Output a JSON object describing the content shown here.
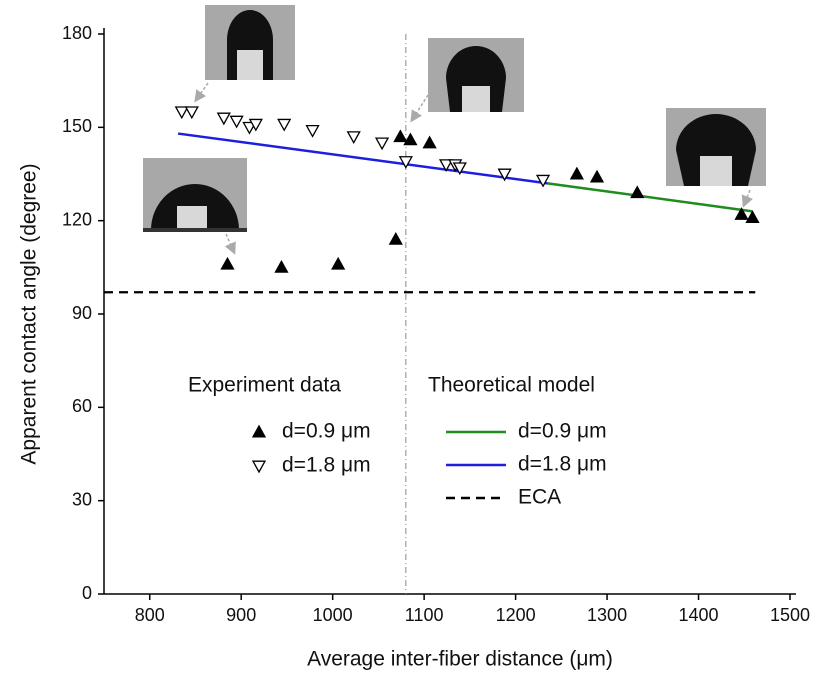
{
  "chart_data": {
    "type": "scatter",
    "xlabel": "Average inter-fiber distance (μm)",
    "ylabel": "Apparent contact angle (degree)",
    "xlim": [
      750,
      1500
    ],
    "xticks": [
      800,
      900,
      1000,
      1100,
      1200,
      1300,
      1400,
      1500
    ],
    "ylim": [
      0,
      180
    ],
    "yticks": [
      0,
      30,
      60,
      90,
      120,
      150,
      180
    ],
    "vline": 1080,
    "legend_titles": [
      "Experiment data",
      "Theoretical model"
    ],
    "series": [
      {
        "name": "d=0.9 μm",
        "type": "scatter",
        "marker": "triangle-up",
        "filled": true,
        "color": "#000000",
        "x": [
          885,
          944,
          1006,
          1069,
          1074,
          1085,
          1106,
          1267,
          1289,
          1333,
          1447,
          1459
        ],
        "values": [
          106,
          105,
          106,
          114,
          147,
          146,
          145,
          135,
          134,
          129,
          122,
          121
        ]
      },
      {
        "name": "d=1.8 μm",
        "type": "scatter",
        "marker": "triangle-down",
        "filled": false,
        "color": "#000000",
        "x": [
          835,
          846,
          881,
          895,
          909,
          916,
          947,
          978,
          1023,
          1054,
          1080,
          1124,
          1134,
          1139,
          1188,
          1230
        ],
        "values": [
          155,
          155,
          153,
          152,
          150,
          151,
          151,
          149,
          147,
          145,
          139,
          138,
          138,
          137,
          135,
          133
        ]
      },
      {
        "name": "d=0.9 μm",
        "type": "line",
        "color": "#1f8c1f",
        "dash": false,
        "x": [
          1235,
          1459
        ],
        "values": [
          132,
          123
        ]
      },
      {
        "name": "d=1.8 μm",
        "type": "line",
        "color": "#1e1ee0",
        "dash": false,
        "x": [
          831,
          1235
        ],
        "values": [
          148,
          132
        ]
      },
      {
        "name": "ECA",
        "type": "line",
        "color": "#000000",
        "dash": true,
        "x": [
          750,
          1462
        ],
        "values": [
          97,
          97
        ]
      }
    ]
  }
}
